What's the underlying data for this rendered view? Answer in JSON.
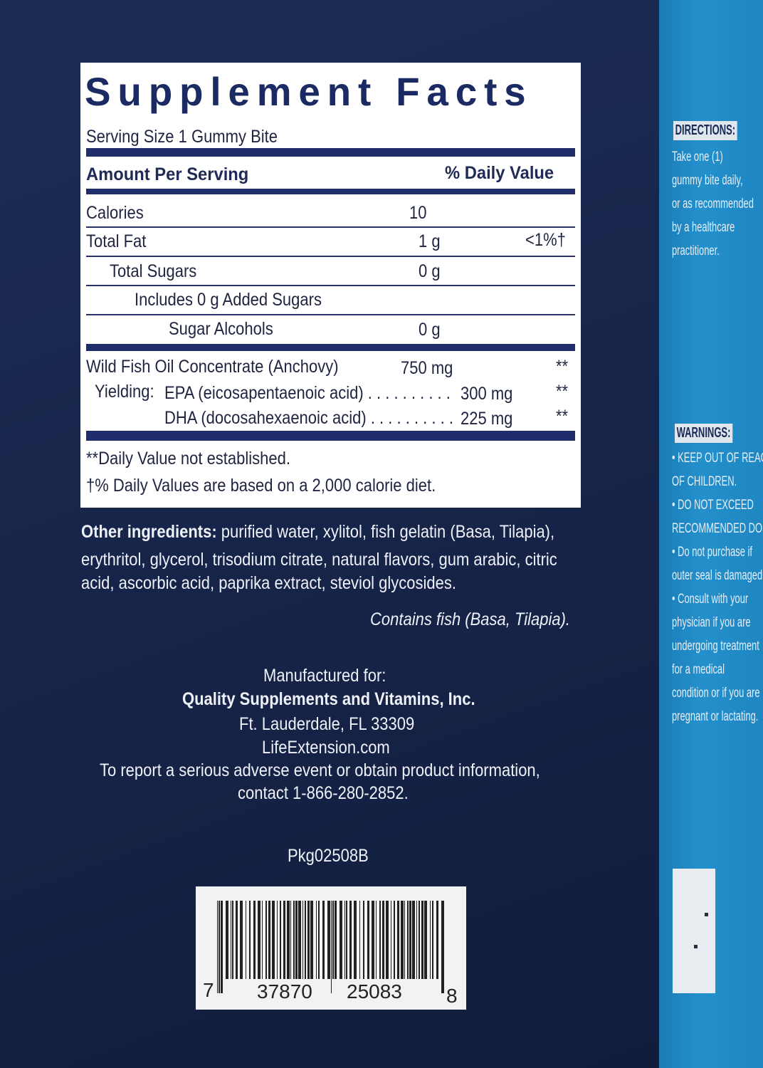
{
  "facts": {
    "title": "Supplement Facts",
    "serving_size": "Serving Size 1 Gummy Bite",
    "amount_per_serving": "Amount Per Serving",
    "daily_value_header": "% Daily Value",
    "rows": [
      {
        "label": "Calories",
        "amount": "10",
        "dv": ""
      },
      {
        "label": "Total Fat",
        "amount": "1 g",
        "dv": "<1%†"
      },
      {
        "label": "Total Sugars",
        "amount": "0 g",
        "dv": ""
      },
      {
        "label": "Includes 0 g Added Sugars",
        "amount": "",
        "dv": ""
      },
      {
        "label": "Sugar Alcohols",
        "amount": "0 g",
        "dv": ""
      }
    ],
    "fish_oil": {
      "label": "Wild Fish Oil Concentrate (Anchovy)",
      "amount": "750 mg",
      "dv": "**"
    },
    "yielding": "Yielding:",
    "epa": {
      "label": "EPA (eicosapentaenoic acid) . . . . . . . . . .",
      "amount": "300 mg",
      "dv": "**"
    },
    "dha": {
      "label": "DHA (docosahexaenoic acid) . . . . . . . . . .",
      "amount": "225 mg",
      "dv": "**"
    },
    "footnote_1": "**Daily Value not established.",
    "footnote_2": "†% Daily Values are based on a 2,000 calorie diet."
  },
  "other_ingredients": {
    "label": "Other ingredients:",
    "line1": " purified water, xylitol, fish gelatin (Basa, Tilapia),",
    "line2": "erythritol, glycerol, trisodium citrate, natural flavors, gum arabic, citric",
    "line3": "acid, ascorbic acid, paprika extract, steviol glycosides."
  },
  "allergen": "Contains fish (Basa, Tilapia).",
  "manufacturer": {
    "line1": "Manufactured for:",
    "name": "Quality Supplements and Vitamins, Inc.",
    "address": "Ft. Lauderdale, FL 33309",
    "website": "LifeExtension.com",
    "report1": "To report a serious adverse event or obtain product information,",
    "report2": "contact 1-866-280-2852."
  },
  "package_code": "Pkg02508B",
  "barcode": {
    "d1": "7",
    "d2": "37870",
    "d3": "25083",
    "d4": "8"
  },
  "side": {
    "directions_label": "DIRECTIONS:",
    "directions": [
      "Take one (1)",
      "gummy bite daily,",
      "or as recommended",
      "by a healthcare",
      "practitioner."
    ],
    "warnings_label": "WARNINGS:",
    "warnings": [
      "• KEEP OUT OF REACH",
      "OF CHILDREN.",
      "• DO NOT EXCEED",
      "RECOMMENDED DOSE.",
      "• Do not purchase if",
      "outer seal is damaged.",
      "• Consult with your",
      "physician if you are",
      "undergoing treatment",
      "for a medical",
      "condition or if you are",
      "pregnant or lactating."
    ]
  },
  "colors": {
    "front": "#172449",
    "side": "#2390cc",
    "facts_navy": "#1f2d6b"
  }
}
